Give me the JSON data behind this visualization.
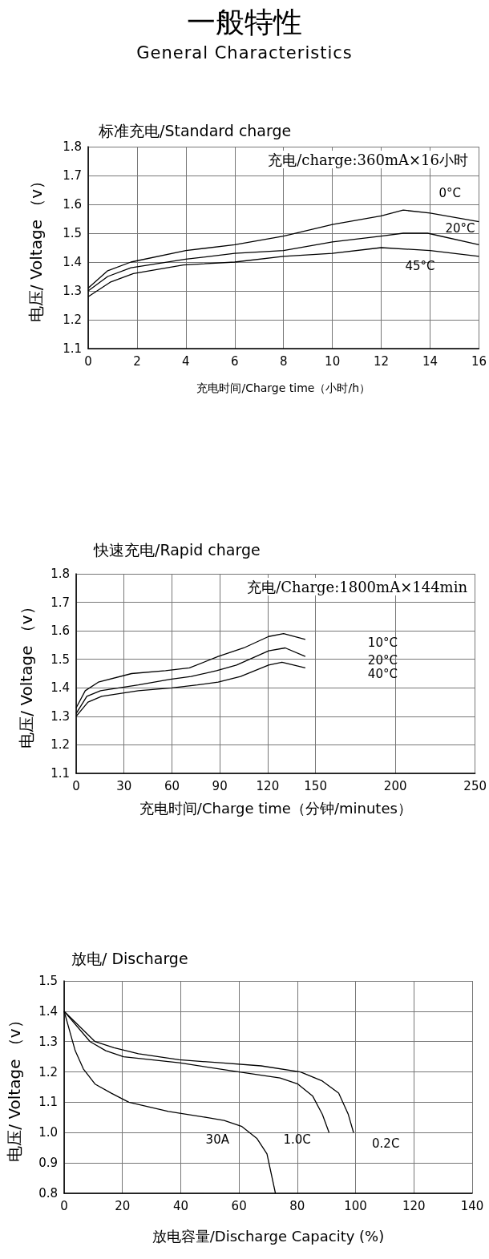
{
  "chart_data": [
    {
      "type": "other",
      "title": "一般特性",
      "subtitle": "General Characteristics"
    },
    {
      "type": "line",
      "title": "标准充电/Standard charge",
      "xlabel": "充电时间/Charge time（小时/h）",
      "ylabel": "电压/ Voltage （v）",
      "annotations": [
        "充电/charge:360mA×16小时"
      ],
      "xlim": [
        0,
        16
      ],
      "ylim": [
        1.1,
        1.8
      ],
      "xticks": [
        0,
        2,
        4,
        6,
        8,
        10,
        12,
        14,
        16
      ],
      "yticks": [
        1.1,
        1.2,
        1.3,
        1.4,
        1.5,
        1.6,
        1.7,
        1.8
      ],
      "grid": true,
      "legend": false,
      "marker": "none",
      "line_style": "solid",
      "series": [
        {
          "name": "0°C",
          "color": "#000000",
          "x": [
            0,
            0.8,
            1.75,
            4,
            6,
            8,
            10,
            12,
            12.9,
            14,
            16
          ],
          "values": [
            1.31,
            1.37,
            1.4,
            1.44,
            1.46,
            1.49,
            1.53,
            1.56,
            1.58,
            1.57,
            1.54
          ]
        },
        {
          "name": "20°C",
          "color": "#000000",
          "x": [
            0,
            0.8,
            1.75,
            4,
            6,
            8,
            10,
            12,
            12.9,
            13.9,
            16
          ],
          "values": [
            1.3,
            1.35,
            1.38,
            1.41,
            1.43,
            1.44,
            1.47,
            1.49,
            1.5,
            1.5,
            1.46
          ]
        },
        {
          "name": "45°C",
          "color": "#000000",
          "x": [
            0,
            0.9,
            1.85,
            3.9,
            6,
            8,
            10,
            12,
            14,
            16
          ],
          "values": [
            1.28,
            1.33,
            1.36,
            1.39,
            1.4,
            1.42,
            1.43,
            1.45,
            1.44,
            1.42
          ]
        }
      ]
    },
    {
      "type": "line",
      "title": "快速充电/Rapid charge",
      "xlabel": "充电时间/Charge time（分钟/minutes）",
      "ylabel": "电压/ Voltage （v）",
      "annotations": [
        "充电/Charge:1800mA×144min"
      ],
      "xlim": [
        0,
        250
      ],
      "ylim": [
        1.1,
        1.8
      ],
      "xticks": [
        0,
        30,
        60,
        90,
        120,
        150,
        200,
        250
      ],
      "yticks": [
        1.1,
        1.2,
        1.3,
        1.4,
        1.5,
        1.6,
        1.7,
        1.8
      ],
      "grid": true,
      "legend": false,
      "marker": "none",
      "line_style": "solid",
      "series": [
        {
          "name": "10°C",
          "color": "#000000",
          "x": [
            0,
            5.7,
            13.9,
            34.7,
            56,
            71,
            89,
            105,
            120.6,
            130,
            143.6
          ],
          "values": [
            1.33,
            1.39,
            1.42,
            1.45,
            1.46,
            1.47,
            1.51,
            1.54,
            1.58,
            1.59,
            1.57
          ]
        },
        {
          "name": "20°C",
          "color": "#000000",
          "x": [
            0,
            6.7,
            15.3,
            39,
            59,
            72,
            88,
            100.5,
            120.6,
            131,
            143.6
          ],
          "values": [
            1.31,
            1.37,
            1.39,
            1.41,
            1.43,
            1.44,
            1.46,
            1.48,
            1.53,
            1.54,
            1.51
          ]
        },
        {
          "name": "40°C",
          "color": "#000000",
          "x": [
            0,
            7.4,
            16,
            39,
            60,
            76,
            89,
            103,
            120.6,
            129,
            143.6
          ],
          "values": [
            1.3,
            1.35,
            1.37,
            1.39,
            1.4,
            1.41,
            1.42,
            1.44,
            1.48,
            1.49,
            1.47
          ]
        }
      ]
    },
    {
      "type": "line",
      "title": "放电/ Discharge",
      "xlabel": "放电容量/Discharge Capacity (%)",
      "ylabel": "电压/ Voltage （v）",
      "xlim": [
        0,
        140
      ],
      "ylim": [
        0.8,
        1.5
      ],
      "xticks": [
        0,
        20,
        40,
        60,
        80,
        100,
        120,
        140
      ],
      "yticks": [
        0.8,
        0.9,
        {
          "value": 1,
          "label": "1.0"
        },
        1.1,
        1.2,
        1.3,
        1.4,
        1.5
      ],
      "grid": true,
      "legend": false,
      "marker": "none",
      "line_style": "solid",
      "series": [
        {
          "name": "0.2C",
          "color": "#000000",
          "x": [
            0,
            10.6,
            17.1,
            25.5,
            39.5,
            53.6,
            67.6,
            81.1,
            88.6,
            94.2,
            97.5,
            99.3
          ],
          "values": [
            1.4,
            1.3,
            1.28,
            1.26,
            1.24,
            1.23,
            1.22,
            1.2,
            1.17,
            1.13,
            1.06,
            1.0
          ]
        },
        {
          "name": "1.0C",
          "color": "#000000",
          "x": [
            0,
            8.9,
            14.3,
            20.4,
            39.5,
            60.1,
            74.1,
            80.2,
            85.3,
            88.6,
            90.9
          ],
          "values": [
            1.4,
            1.3,
            1.27,
            1.25,
            1.23,
            1.2,
            1.18,
            1.16,
            1.12,
            1.06,
            1.0
          ]
        },
        {
          "name": "30A",
          "color": "#000000",
          "x": [
            0,
            3.8,
            6.6,
            10.6,
            16.2,
            22.2,
            35.8,
            48.9,
            54.9,
            61,
            66.2,
            69.6,
            72.5
          ],
          "values": [
            1.4,
            1.27,
            1.21,
            1.16,
            1.13,
            1.1,
            1.07,
            1.05,
            1.04,
            1.02,
            0.98,
            0.93,
            0.8
          ]
        }
      ]
    }
  ]
}
